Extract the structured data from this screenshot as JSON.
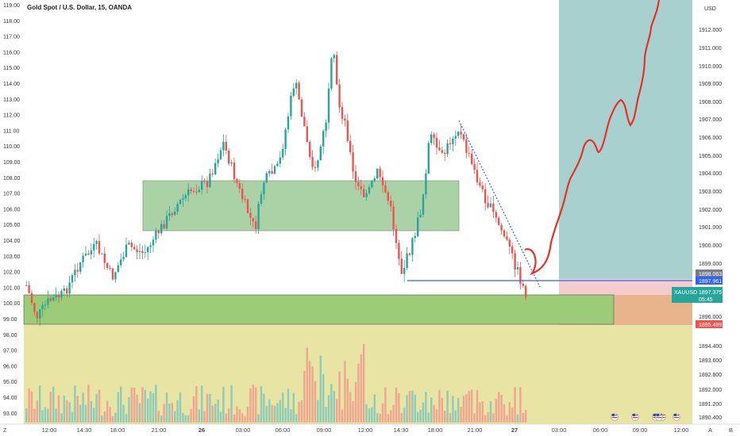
{
  "chart_title": "Gold Spot / U.S. Dollar, 15, OANDA",
  "currency": "USD",
  "left_axis_labels": [
    "119.00",
    "118.00",
    "117.00",
    "116.00",
    "115.00",
    "114.00",
    "113.00",
    "112.00",
    "111.00",
    "110.00",
    "109.00",
    "108.00",
    "107.00",
    "106.00",
    "105.00",
    "104.00",
    "103.00",
    "102.00",
    "101.00",
    "100.00",
    "99.00",
    "98.00",
    "97.00",
    "96.00",
    "95.00",
    "94.00",
    "93.00"
  ],
  "right_axis_labels": [
    "1912.000",
    "1911.000",
    "1910.000",
    "1909.000",
    "1908.000",
    "1907.000",
    "1906.000",
    "1905.000",
    "1904.000",
    "1903.000",
    "1902.000",
    "1901.000",
    "1900.000",
    "1899.000",
    "1896.000",
    "1894.400",
    "1893.600",
    "1892.800",
    "1892.000",
    "1891.200",
    "1890.400"
  ],
  "time_labels": [
    "12:00",
    "14:30",
    "18:00",
    "21:00",
    "26",
    "03:00",
    "06:00",
    "09:00",
    "12:00",
    "14:30",
    "18:00",
    "21:00",
    "27",
    "03:00",
    "06:00",
    "09:00",
    "12:00"
  ],
  "price_tags": {
    "upper": "1898.063",
    "line": "1897.961",
    "symbol": "XAUUSD",
    "current": "1897.375",
    "countdown": "05:45",
    "stop": "1895.499"
  },
  "bottom_corner_left": "Z",
  "bottom_corner_right_a": "A",
  "bottom_corner_right_b": "B",
  "colors": {
    "bull": "#26a69a",
    "bear": "#ef5350",
    "zone_green": "#7cbf6e",
    "zone_yellow": "#e8e4a4",
    "teal_target": "#a8d0ce",
    "path_red": "#e8302a",
    "blue_line": "#2962ff"
  },
  "icons": [
    "flag-us-icon",
    "flag-us-icon",
    "flag-us-icon",
    "flag-us-icon",
    "flag-us-icon",
    "flag-us-icon"
  ]
}
